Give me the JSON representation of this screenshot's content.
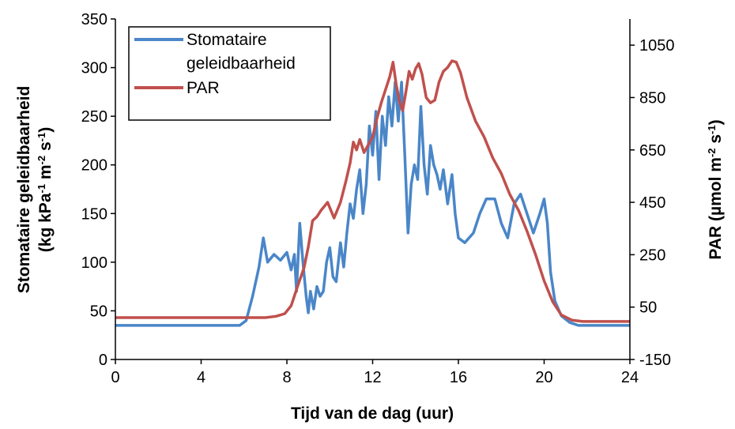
{
  "chart_data": {
    "type": "line",
    "title": "",
    "xlabel": "Tijd van de dag (uur)",
    "ylabel_left": [
      "Stomataire geleidbaarheid",
      "(kg kPa",
      "-1",
      " m",
      "-2",
      " s",
      "-1",
      ")"
    ],
    "ylabel_right": [
      "PAR (µmol m",
      "-2",
      " s",
      "-1",
      ")"
    ],
    "xlim": [
      0,
      24
    ],
    "x_ticks": [
      0,
      4,
      8,
      12,
      16,
      20,
      24
    ],
    "ylim_left": [
      0,
      350
    ],
    "y_ticks_left": [
      0,
      50,
      100,
      150,
      200,
      250,
      300,
      350
    ],
    "ylim_right": [
      -150,
      1150
    ],
    "y_ticks_right": [
      -150,
      50,
      250,
      450,
      650,
      850,
      1050
    ],
    "grid": false,
    "legend_position": "top-left",
    "legend_lines": [
      [
        "Stomataire",
        "geleidbaarheid"
      ],
      [
        "PAR"
      ]
    ],
    "series": [
      {
        "name": "Stomataire geleidbaarheid",
        "axis": "left",
        "color": "#4a86c8",
        "points": [
          [
            0,
            35
          ],
          [
            1,
            35
          ],
          [
            2,
            35
          ],
          [
            3,
            35
          ],
          [
            4,
            35
          ],
          [
            5,
            35
          ],
          [
            5.8,
            35
          ],
          [
            6.1,
            40
          ],
          [
            6.4,
            65
          ],
          [
            6.7,
            95
          ],
          [
            6.9,
            125
          ],
          [
            7.1,
            100
          ],
          [
            7.4,
            108
          ],
          [
            7.7,
            102
          ],
          [
            8.0,
            110
          ],
          [
            8.2,
            92
          ],
          [
            8.35,
            108
          ],
          [
            8.45,
            70
          ],
          [
            8.6,
            140
          ],
          [
            8.75,
            100
          ],
          [
            8.9,
            65
          ],
          [
            9.0,
            48
          ],
          [
            9.1,
            70
          ],
          [
            9.25,
            52
          ],
          [
            9.4,
            75
          ],
          [
            9.55,
            65
          ],
          [
            9.7,
            70
          ],
          [
            9.85,
            100
          ],
          [
            10.0,
            115
          ],
          [
            10.15,
            85
          ],
          [
            10.3,
            80
          ],
          [
            10.5,
            120
          ],
          [
            10.65,
            95
          ],
          [
            10.8,
            130
          ],
          [
            10.95,
            160
          ],
          [
            11.1,
            145
          ],
          [
            11.25,
            175
          ],
          [
            11.4,
            195
          ],
          [
            11.55,
            150
          ],
          [
            11.7,
            180
          ],
          [
            11.85,
            240
          ],
          [
            12.0,
            210
          ],
          [
            12.15,
            255
          ],
          [
            12.3,
            185
          ],
          [
            12.45,
            250
          ],
          [
            12.6,
            220
          ],
          [
            12.75,
            270
          ],
          [
            12.9,
            240
          ],
          [
            13.05,
            285
          ],
          [
            13.2,
            245
          ],
          [
            13.35,
            285
          ],
          [
            13.5,
            210
          ],
          [
            13.65,
            130
          ],
          [
            13.8,
            180
          ],
          [
            13.95,
            200
          ],
          [
            14.1,
            185
          ],
          [
            14.25,
            260
          ],
          [
            14.4,
            200
          ],
          [
            14.55,
            170
          ],
          [
            14.7,
            220
          ],
          [
            14.85,
            200
          ],
          [
            15.0,
            190
          ],
          [
            15.15,
            175
          ],
          [
            15.3,
            195
          ],
          [
            15.5,
            160
          ],
          [
            15.7,
            190
          ],
          [
            15.85,
            150
          ],
          [
            16.0,
            125
          ],
          [
            16.3,
            120
          ],
          [
            16.7,
            130
          ],
          [
            17.0,
            150
          ],
          [
            17.3,
            165
          ],
          [
            17.7,
            165
          ],
          [
            18.0,
            140
          ],
          [
            18.3,
            125
          ],
          [
            18.6,
            160
          ],
          [
            18.9,
            170
          ],
          [
            19.2,
            150
          ],
          [
            19.5,
            130
          ],
          [
            19.8,
            150
          ],
          [
            20.0,
            165
          ],
          [
            20.15,
            140
          ],
          [
            20.3,
            90
          ],
          [
            20.5,
            60
          ],
          [
            20.8,
            45
          ],
          [
            21.2,
            38
          ],
          [
            21.6,
            35
          ],
          [
            22.0,
            35
          ],
          [
            23.0,
            35
          ],
          [
            24,
            35
          ]
        ]
      },
      {
        "name": "PAR",
        "axis": "right",
        "color": "#c0504d",
        "points": [
          [
            0,
            10
          ],
          [
            2,
            10
          ],
          [
            4,
            10
          ],
          [
            6,
            10
          ],
          [
            7,
            10
          ],
          [
            7.5,
            15
          ],
          [
            7.9,
            25
          ],
          [
            8.2,
            55
          ],
          [
            8.5,
            130
          ],
          [
            8.8,
            200
          ],
          [
            9.0,
            280
          ],
          [
            9.2,
            380
          ],
          [
            9.4,
            395
          ],
          [
            9.6,
            420
          ],
          [
            9.9,
            450
          ],
          [
            10.2,
            390
          ],
          [
            10.5,
            450
          ],
          [
            10.75,
            530
          ],
          [
            10.95,
            600
          ],
          [
            11.1,
            680
          ],
          [
            11.25,
            650
          ],
          [
            11.4,
            690
          ],
          [
            11.6,
            640
          ],
          [
            11.8,
            670
          ],
          [
            12.0,
            700
          ],
          [
            12.2,
            770
          ],
          [
            12.4,
            830
          ],
          [
            12.6,
            880
          ],
          [
            12.8,
            930
          ],
          [
            12.95,
            985
          ],
          [
            13.1,
            900
          ],
          [
            13.25,
            835
          ],
          [
            13.4,
            800
          ],
          [
            13.55,
            870
          ],
          [
            13.7,
            950
          ],
          [
            13.85,
            920
          ],
          [
            14.0,
            960
          ],
          [
            14.15,
            980
          ],
          [
            14.3,
            940
          ],
          [
            14.5,
            850
          ],
          [
            14.7,
            830
          ],
          [
            14.9,
            840
          ],
          [
            15.1,
            910
          ],
          [
            15.3,
            950
          ],
          [
            15.5,
            965
          ],
          [
            15.7,
            990
          ],
          [
            15.9,
            985
          ],
          [
            16.1,
            945
          ],
          [
            16.4,
            850
          ],
          [
            16.8,
            760
          ],
          [
            17.2,
            700
          ],
          [
            17.6,
            620
          ],
          [
            18.0,
            560
          ],
          [
            18.4,
            480
          ],
          [
            18.8,
            420
          ],
          [
            19.2,
            340
          ],
          [
            19.6,
            250
          ],
          [
            20.0,
            150
          ],
          [
            20.4,
            70
          ],
          [
            20.8,
            20
          ],
          [
            21.3,
            0
          ],
          [
            21.8,
            -5
          ],
          [
            22.5,
            -5
          ],
          [
            23.5,
            -5
          ],
          [
            24,
            -5
          ]
        ]
      }
    ]
  }
}
